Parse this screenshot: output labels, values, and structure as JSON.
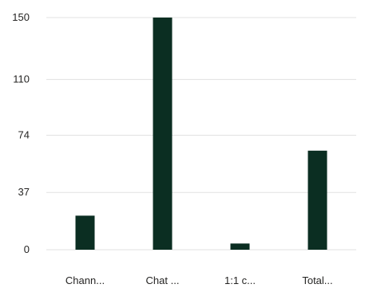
{
  "chart_data": {
    "type": "bar",
    "title": "",
    "xlabel": "",
    "ylabel": "",
    "categories": [
      "Chann...",
      "Chat ...",
      "1:1 c...",
      "Total..."
    ],
    "values": [
      22,
      150,
      4,
      64
    ],
    "yticks": [
      0,
      37,
      74,
      110,
      150
    ],
    "ylim": [
      0,
      150
    ],
    "grid": true,
    "legend": "none",
    "bar_color": "#0b2e22"
  }
}
